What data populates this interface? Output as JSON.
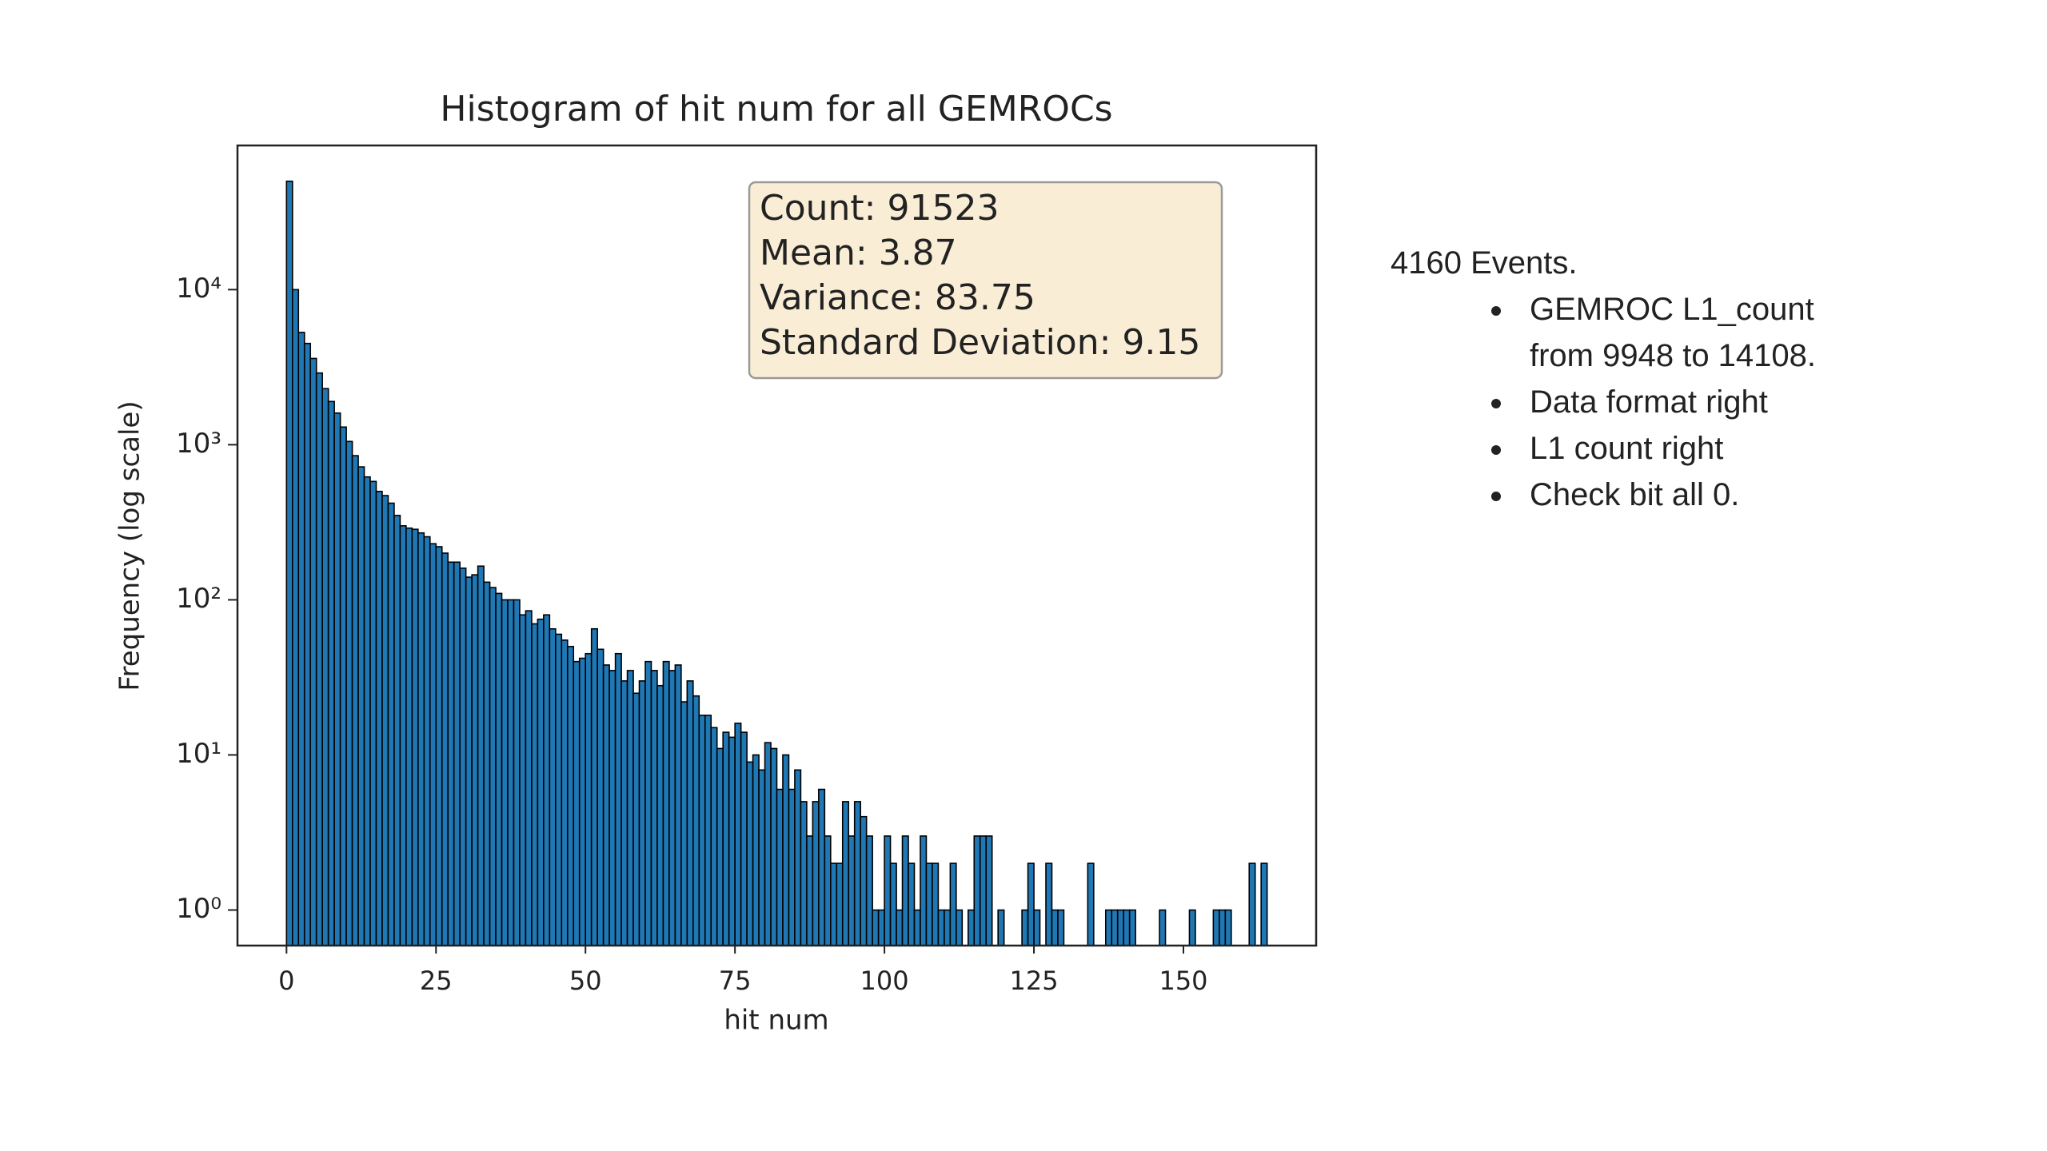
{
  "chart_data": {
    "type": "histogram",
    "title": "Histogram of hit num for all GEMROCs",
    "xlabel": "hit num",
    "ylabel": "Frequency (log scale)",
    "bins": [
      0,
      1,
      2,
      3,
      4,
      5,
      6,
      7,
      8,
      9,
      10,
      11,
      12,
      13,
      14,
      15,
      16,
      17,
      18,
      19,
      20,
      21,
      22,
      23,
      24,
      25,
      26,
      27,
      28,
      29,
      30,
      31,
      32,
      33,
      34,
      35,
      36,
      37,
      38,
      39,
      40,
      41,
      42,
      43,
      44,
      45,
      46,
      47,
      48,
      49,
      50,
      51,
      52,
      53,
      54,
      55,
      56,
      57,
      58,
      59,
      60,
      61,
      62,
      63,
      64,
      65,
      66,
      67,
      68,
      69,
      70,
      71,
      72,
      73,
      74,
      75,
      76,
      77,
      78,
      79,
      80,
      81,
      82,
      83,
      84,
      85,
      86,
      87,
      88,
      89,
      90,
      91,
      92,
      93,
      94,
      95,
      96,
      97,
      98,
      99,
      100,
      101,
      102,
      103,
      104,
      105,
      106,
      107,
      108,
      109,
      110,
      111,
      112,
      113,
      114,
      115,
      116,
      117,
      118,
      119,
      120,
      121,
      122,
      123,
      124,
      125,
      126,
      127,
      128,
      129,
      130,
      131,
      132,
      133,
      134,
      135,
      136,
      137,
      138,
      139,
      140,
      141,
      142,
      143,
      144,
      145,
      146,
      147,
      148,
      149,
      150,
      151,
      152,
      153,
      154,
      155,
      156,
      157,
      158,
      159,
      160,
      161,
      162,
      163,
      164
    ],
    "values": [
      50000,
      10000,
      5300,
      4500,
      3600,
      2900,
      2300,
      1900,
      1600,
      1300,
      1050,
      850,
      720,
      620,
      580,
      500,
      470,
      420,
      350,
      300,
      290,
      285,
      270,
      255,
      230,
      220,
      200,
      175,
      175,
      160,
      140,
      145,
      165,
      130,
      120,
      110,
      100,
      100,
      100,
      80,
      85,
      70,
      75,
      80,
      65,
      60,
      55,
      50,
      40,
      42,
      45,
      65,
      48,
      38,
      35,
      45,
      30,
      35,
      25,
      30,
      40,
      35,
      28,
      40,
      35,
      38,
      22,
      30,
      24,
      18,
      18,
      15,
      11,
      14,
      13,
      16,
      14,
      9,
      10,
      8,
      12,
      11,
      6,
      10,
      6,
      8,
      5,
      3,
      5,
      6,
      3,
      2,
      2,
      5,
      3,
      5,
      4,
      3,
      1,
      1,
      3,
      2,
      1,
      3,
      2,
      1,
      3,
      2,
      2,
      1,
      1,
      2,
      1,
      0,
      1,
      3,
      3,
      3,
      0,
      1,
      0,
      0,
      0,
      1,
      2,
      1,
      0,
      2,
      1,
      1,
      0,
      0,
      0,
      0,
      2,
      0,
      0,
      1,
      1,
      1,
      1,
      1,
      0,
      0,
      0,
      0,
      1,
      0,
      0,
      0,
      0,
      1,
      0,
      0,
      0,
      1,
      1,
      1,
      0,
      0,
      0,
      2,
      0,
      2
    ],
    "color": "#1f77b4",
    "edgecolor": "#000000",
    "log_y": true,
    "xlim": [
      -8.2,
      172.2
    ],
    "ylim": [
      0.59,
      85000
    ],
    "xticks": [
      0,
      25,
      50,
      75,
      100,
      125,
      150
    ],
    "yticks": [
      {
        "value": 1,
        "label": "10⁰"
      },
      {
        "value": 10,
        "label": "10¹"
      },
      {
        "value": 100,
        "label": "10²"
      },
      {
        "value": 1000,
        "label": "10³"
      },
      {
        "value": 10000,
        "label": "10⁴"
      }
    ],
    "stats": [
      "Count: 91523",
      "Mean: 3.87",
      "Variance: 83.75",
      "Standard Deviation: 9.15"
    ]
  },
  "notes": {
    "heading": "4160 Events.",
    "bullets": [
      "GEMROC L1_count from 9948 to 14108.",
      "Data format right",
      "L1 count right",
      "Check bit all 0."
    ]
  }
}
